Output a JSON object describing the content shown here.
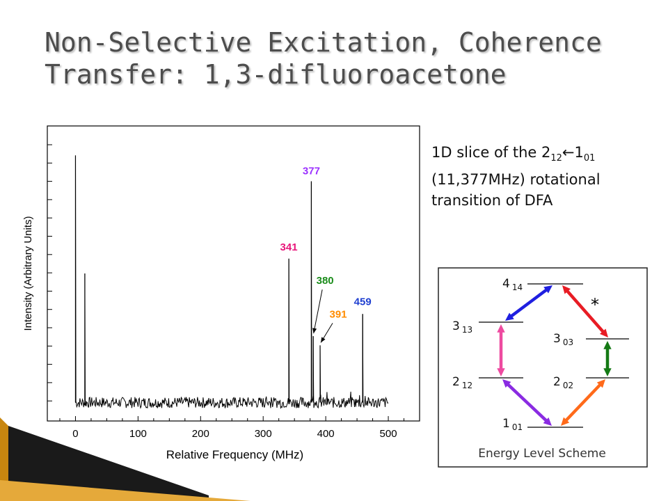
{
  "slide": {
    "title_line1": "Non-Selective Excitation, Coherence",
    "title_line2": "Transfer: 1,3-difluoroacetone",
    "description": {
      "line1_prefix": "1D slice of the 2",
      "line1_sub1": "12",
      "line1_arrow": "←1",
      "line1_sub2": "01",
      "line2": "(11,377MHz) rotational",
      "line3": "transition of DFA"
    }
  },
  "chart_data": {
    "type": "line",
    "title": "",
    "xlabel": "Relative Frequency (MHz)",
    "ylabel": "Intensity (Arbitrary Units)",
    "xlim": [
      -45,
      550
    ],
    "ylim": [
      -0.1,
      1.5
    ],
    "xticks": [
      0,
      100,
      200,
      300,
      400,
      500
    ],
    "grid": false,
    "baseline": 0.0,
    "noise_amplitude": 0.03,
    "peaks": [
      {
        "x": 0,
        "y": 1.34,
        "label": ""
      },
      {
        "x": 15,
        "y": 0.7,
        "label": ""
      },
      {
        "x": 341,
        "y": 0.78,
        "label": "341",
        "color": "#e8157a"
      },
      {
        "x": 377,
        "y": 1.2,
        "label": "377",
        "color": "#9b30ff"
      },
      {
        "x": 380,
        "y": 0.36,
        "label": "380",
        "color": "#1a8c1a"
      },
      {
        "x": 391,
        "y": 0.31,
        "label": "391",
        "color": "#ff8c00"
      },
      {
        "x": 459,
        "y": 0.48,
        "label": "459",
        "color": "#1f3fd0"
      }
    ]
  },
  "energy_diagram": {
    "caption": "Energy Level Scheme",
    "star": "*",
    "levels": [
      {
        "id": "4_14",
        "main": "4",
        "sub": "14"
      },
      {
        "id": "3_13",
        "main": "3",
        "sub": "13"
      },
      {
        "id": "3_03",
        "main": "3",
        "sub": "03"
      },
      {
        "id": "2_12",
        "main": "2",
        "sub": "12"
      },
      {
        "id": "2_02",
        "main": "2",
        "sub": "02"
      },
      {
        "id": "1_01",
        "main": "1",
        "sub": "01"
      }
    ],
    "transitions": [
      {
        "from": "1_01",
        "to": "2_12",
        "color": "#8a2be2"
      },
      {
        "from": "2_12",
        "to": "3_13",
        "color": "#ee4aa0"
      },
      {
        "from": "3_13",
        "to": "4_14",
        "color": "#1f1fe0"
      },
      {
        "from": "4_14",
        "to": "3_03",
        "color": "#e81c24"
      },
      {
        "from": "3_03",
        "to": "2_02",
        "color": "#157a15"
      },
      {
        "from": "2_02",
        "to": "1_01",
        "color": "#ff6a1a"
      }
    ]
  },
  "decoration": {
    "corner_color": "#c8860f"
  }
}
